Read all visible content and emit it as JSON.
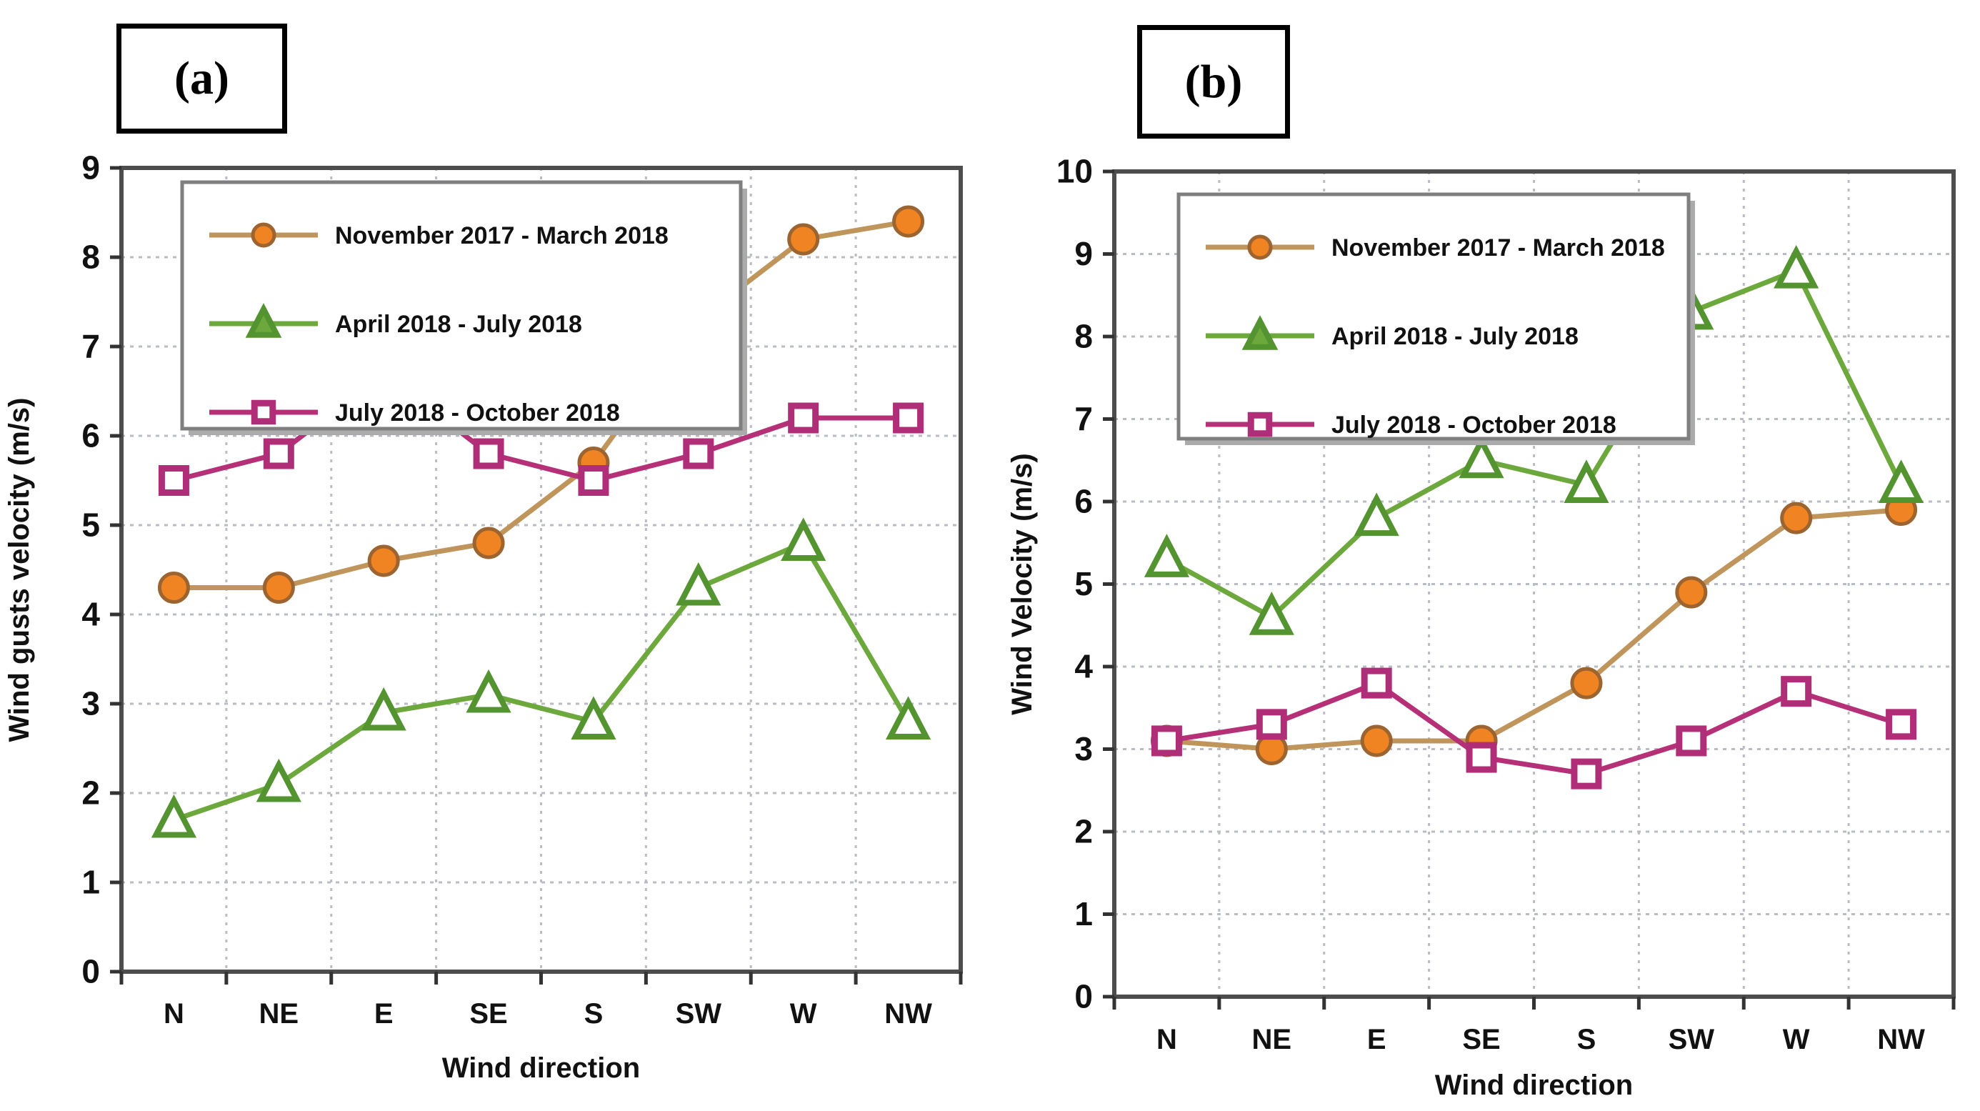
{
  "figure": {
    "background": "#ffffff",
    "xlabel_shared": "Wind direction"
  },
  "colors": {
    "plot_border": "#4d4d4d",
    "grid": "#b9bcc2",
    "tick": "#333333",
    "text": "#111111",
    "legend_border": "#7f7f7f",
    "legend_shadow": "#ababab",
    "orange_marker": "#f08423",
    "orange_edge": "#9c6430",
    "orange_line": "#c0955b",
    "green_line": "#6ca83c",
    "green_edge": "#539330",
    "magenta_line": "#b53077",
    "marker_fill_open": "#ffffff"
  },
  "chart_data": [
    {
      "id": "a",
      "type": "line",
      "panel_label": "(a)",
      "categories": [
        "N",
        "NE",
        "E",
        "SE",
        "S",
        "SW",
        "W",
        "NW"
      ],
      "series": [
        {
          "name": "November 2017 - March 2018",
          "marker": "circle",
          "color": "#c0955b",
          "marker_color": "#f08423",
          "marker_edge": "#9c6430",
          "values": [
            4.3,
            4.3,
            4.6,
            4.8,
            5.7,
            7.3,
            8.2,
            8.4
          ]
        },
        {
          "name": "April 2018 - July 2018",
          "marker": "triangle",
          "color": "#6ca83c",
          "marker_color": "#ffffff",
          "marker_edge": "#539330",
          "values": [
            1.7,
            2.1,
            2.9,
            3.1,
            2.8,
            4.3,
            4.8,
            2.8
          ]
        },
        {
          "name": "July 2018 - October 2018",
          "marker": "square",
          "color": "#b53077",
          "marker_color": "#ffffff",
          "marker_edge": "#b02d78",
          "values": [
            5.5,
            5.8,
            6.7,
            5.8,
            5.5,
            5.8,
            6.2,
            6.2
          ]
        }
      ],
      "title": "",
      "xlabel": "Wind direction",
      "ylabel": "Wind gusts velocity (m/s)",
      "ylim": [
        0,
        9
      ],
      "ytick_step": 1,
      "yticks": [
        "0",
        "1",
        "2",
        "3",
        "4",
        "5",
        "6",
        "7",
        "8",
        "9"
      ],
      "grid": true,
      "legend_position": "top-left"
    },
    {
      "id": "b",
      "type": "line",
      "panel_label": "(b)",
      "categories": [
        "N",
        "NE",
        "E",
        "SE",
        "S",
        "SW",
        "W",
        "NW"
      ],
      "series": [
        {
          "name": "November 2017 - March 2018",
          "marker": "circle",
          "color": "#c0955b",
          "marker_color": "#f08423",
          "marker_edge": "#9c6430",
          "values": [
            3.1,
            3.0,
            3.1,
            3.1,
            3.8,
            4.9,
            5.8,
            5.9
          ]
        },
        {
          "name": "April 2018 - July 2018",
          "marker": "triangle",
          "color": "#6ca83c",
          "marker_color": "#ffffff",
          "marker_edge": "#539330",
          "values": [
            5.3,
            4.6,
            5.8,
            6.5,
            6.2,
            8.3,
            8.8,
            6.2
          ]
        },
        {
          "name": "July 2018 - October 2018",
          "marker": "square",
          "color": "#b53077",
          "marker_color": "#ffffff",
          "marker_edge": "#b02d78",
          "values": [
            3.1,
            3.3,
            3.8,
            2.9,
            2.7,
            3.1,
            3.7,
            3.3
          ]
        }
      ],
      "title": "",
      "xlabel": "Wind direction",
      "ylabel": "Wind Velocity (m/s)",
      "ylim": [
        0,
        10
      ],
      "ytick_step": 1,
      "yticks": [
        "0",
        "1",
        "2",
        "3",
        "4",
        "5",
        "6",
        "7",
        "8",
        "9",
        "10"
      ],
      "grid": true,
      "legend_position": "top-left"
    }
  ]
}
